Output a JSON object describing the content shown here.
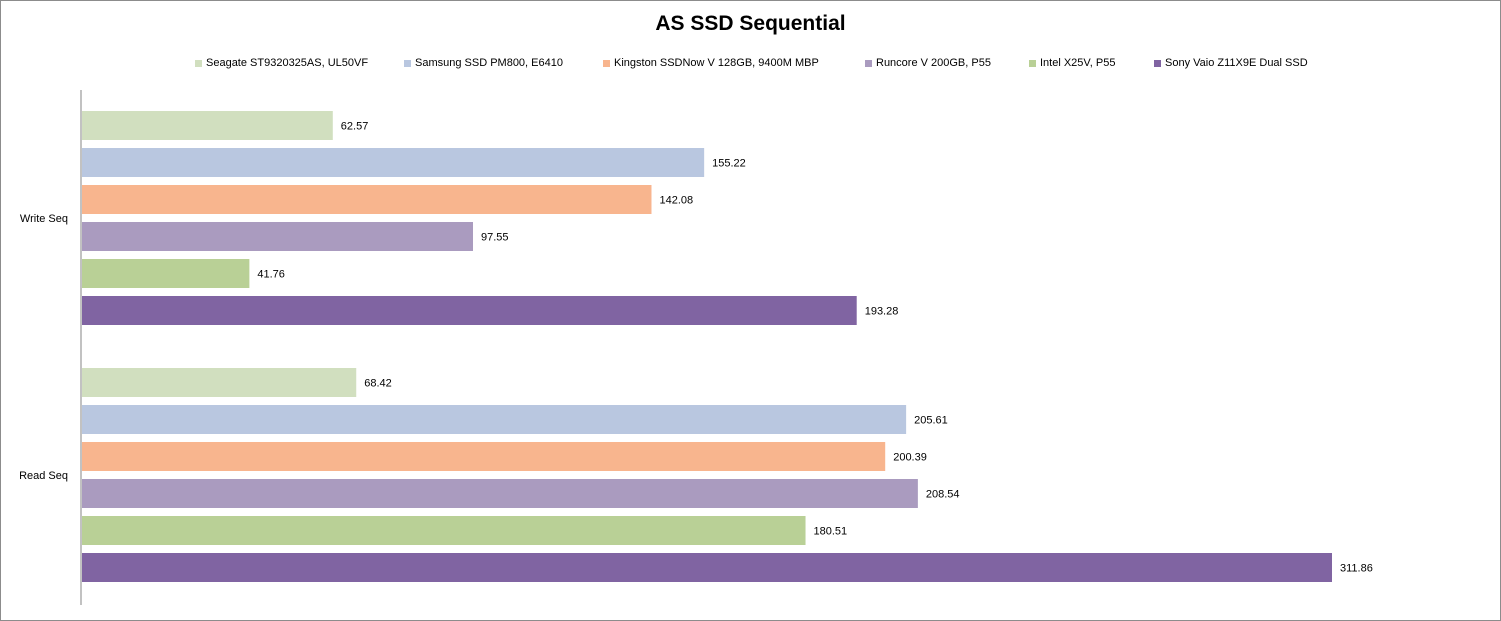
{
  "chart_data": {
    "type": "bar",
    "orientation": "horizontal",
    "title": "AS SSD Sequential",
    "categories": [
      "Write Seq",
      "Read Seq"
    ],
    "series": [
      {
        "name": "Seagate ST9320325AS, UL50VF",
        "color": "#d1dfbf",
        "values": [
          62.57,
          68.42
        ]
      },
      {
        "name": "Samsung SSD PM800, E6410",
        "color": "#b9c7e0",
        "values": [
          155.22,
          205.61
        ]
      },
      {
        "name": "Kingston SSDNow  V 128GB, 9400M MBP",
        "color": "#f8b58e",
        "values": [
          142.08,
          200.39
        ]
      },
      {
        "name": "Runcore V 200GB, P55",
        "color": "#aa9bbf",
        "values": [
          97.55,
          208.54
        ]
      },
      {
        "name": "Intel X25V, P55",
        "color": "#b9d096",
        "values": [
          41.76,
          180.51
        ]
      },
      {
        "name": "Sony Vaio Z11X9E Dual SSD",
        "color": "#8064a2",
        "values": [
          193.28,
          311.86
        ]
      }
    ],
    "xlim": [
      0,
      350
    ],
    "grid": false,
    "legend_position": "top"
  }
}
